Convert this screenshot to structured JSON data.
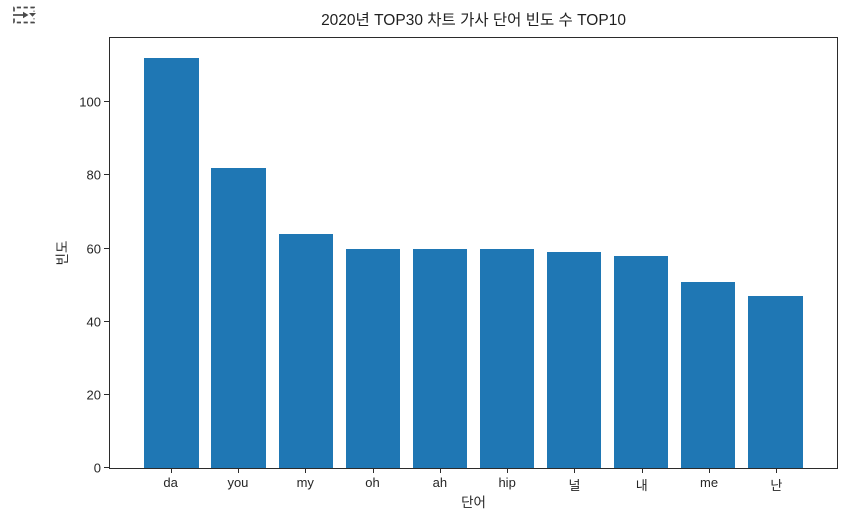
{
  "toolbar": {
    "icon": "run-arrow-dropdown-icon"
  },
  "chart_data": {
    "type": "bar",
    "title": "2020년 TOP30 차트 가사 단어 빈도 수 TOP10",
    "xlabel": "단어",
    "ylabel": "빈도",
    "categories": [
      "da",
      "you",
      "my",
      "oh",
      "ah",
      "hip",
      "널",
      "내",
      "me",
      "난"
    ],
    "values": [
      112,
      82,
      64,
      60,
      60,
      60,
      59,
      58,
      51,
      47
    ],
    "yticks": [
      0,
      20,
      40,
      60,
      80,
      100
    ],
    "ylim": [
      0,
      117.6
    ],
    "bar_color": "#1f77b4",
    "grid": false,
    "legend_position": "none"
  }
}
